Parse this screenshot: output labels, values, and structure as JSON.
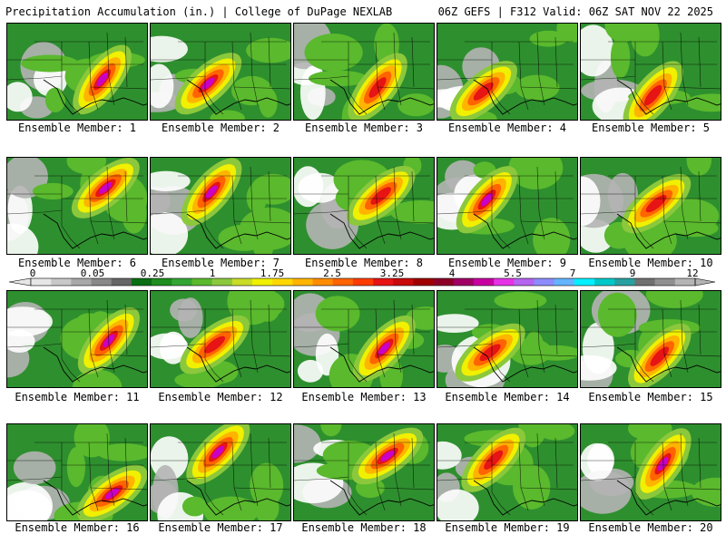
{
  "header": {
    "left": "Precipitation Accumulation (in.) | College of DuPage NEXLAB",
    "right": "06Z GEFS | F312 Valid: 06Z SAT NOV 22 2025"
  },
  "members": [
    {
      "label": "Ensemble Member: 1"
    },
    {
      "label": "Ensemble Member: 2"
    },
    {
      "label": "Ensemble Member: 3"
    },
    {
      "label": "Ensemble Member: 4"
    },
    {
      "label": "Ensemble Member: 5"
    },
    {
      "label": "Ensemble Member: 6"
    },
    {
      "label": "Ensemble Member: 7"
    },
    {
      "label": "Ensemble Member: 8"
    },
    {
      "label": "Ensemble Member: 9"
    },
    {
      "label": "Ensemble Member: 10"
    },
    {
      "label": "Ensemble Member: 11"
    },
    {
      "label": "Ensemble Member: 12"
    },
    {
      "label": "Ensemble Member: 13"
    },
    {
      "label": "Ensemble Member: 14"
    },
    {
      "label": "Ensemble Member: 15"
    },
    {
      "label": "Ensemble Member: 16"
    },
    {
      "label": "Ensemble Member: 17"
    },
    {
      "label": "Ensemble Member: 18"
    },
    {
      "label": "Ensemble Member: 19"
    },
    {
      "label": "Ensemble Member: 20"
    }
  ],
  "colorbar": {
    "ticks": [
      "0",
      "0.05",
      "0.25",
      "1",
      "1.75",
      "2.5",
      "3.25",
      "4",
      "5.5",
      "7",
      "9",
      "12"
    ],
    "colors": [
      "#e6e6e6",
      "#c8c8c8",
      "#a8a8a8",
      "#888888",
      "#666666",
      "#0a6e14",
      "#1e8c1e",
      "#33a533",
      "#5ab92d",
      "#8cc83c",
      "#c8dc28",
      "#f0f000",
      "#ffd700",
      "#ffb400",
      "#ff8c00",
      "#ff6400",
      "#ff3c00",
      "#e61414",
      "#c80a0a",
      "#a00000",
      "#8c0028",
      "#a00064",
      "#c800a0",
      "#e632e6",
      "#b464f0",
      "#8c8cff",
      "#64b4ff",
      "#00f0ff",
      "#00c8c8",
      "#28a0a0",
      "#707070",
      "#909090",
      "#b4b4b4"
    ]
  }
}
